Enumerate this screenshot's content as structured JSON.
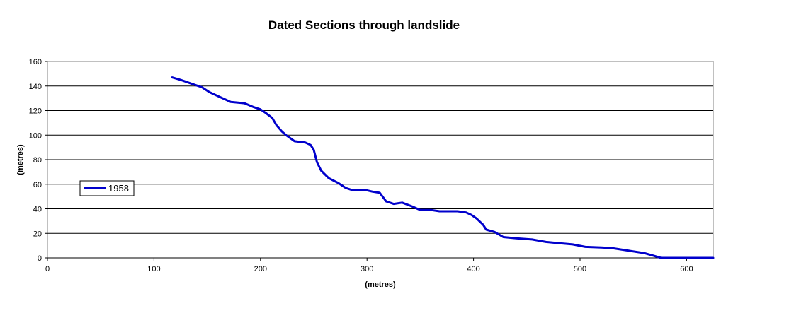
{
  "chart_data": {
    "type": "line",
    "title": "Dated Sections through landslide",
    "xlabel": "(metres)",
    "ylabel": "(metres)",
    "xlim": [
      0,
      625
    ],
    "ylim": [
      0,
      160
    ],
    "x_ticks": [
      "0",
      "100",
      "200",
      "300",
      "400",
      "500",
      "600"
    ],
    "y_ticks": [
      "0",
      "20",
      "40",
      "60",
      "80",
      "100",
      "120",
      "140",
      "160"
    ],
    "grid": "horizontal",
    "legend_position": "left",
    "series": [
      {
        "name": "1958",
        "color": "#0000cc",
        "points": [
          [
            117,
            147
          ],
          [
            125,
            145
          ],
          [
            135,
            142
          ],
          [
            145,
            139
          ],
          [
            152,
            135
          ],
          [
            162,
            131
          ],
          [
            172,
            127
          ],
          [
            185,
            126
          ],
          [
            193,
            123
          ],
          [
            200,
            121
          ],
          [
            205,
            118
          ],
          [
            211,
            114
          ],
          [
            215,
            108
          ],
          [
            220,
            103
          ],
          [
            224,
            100
          ],
          [
            232,
            95
          ],
          [
            242,
            94
          ],
          [
            247,
            92
          ],
          [
            250,
            88
          ],
          [
            253,
            78
          ],
          [
            257,
            71
          ],
          [
            264,
            65
          ],
          [
            273,
            61
          ],
          [
            280,
            57
          ],
          [
            287,
            55
          ],
          [
            300,
            55
          ],
          [
            305,
            54
          ],
          [
            312,
            53
          ],
          [
            318,
            46
          ],
          [
            325,
            44
          ],
          [
            333,
            45
          ],
          [
            342,
            42
          ],
          [
            350,
            39
          ],
          [
            360,
            39
          ],
          [
            368,
            38
          ],
          [
            385,
            38
          ],
          [
            393,
            37
          ],
          [
            398,
            35
          ],
          [
            403,
            32
          ],
          [
            409,
            27
          ],
          [
            412,
            23
          ],
          [
            420,
            21
          ],
          [
            428,
            17
          ],
          [
            440,
            16
          ],
          [
            455,
            15
          ],
          [
            468,
            13
          ],
          [
            480,
            12
          ],
          [
            493,
            11
          ],
          [
            505,
            9
          ],
          [
            520,
            8.5
          ],
          [
            530,
            8
          ],
          [
            545,
            6
          ],
          [
            560,
            4
          ],
          [
            568,
            2
          ],
          [
            576,
            0
          ],
          [
            614,
            0
          ],
          [
            625,
            0
          ]
        ]
      }
    ]
  }
}
